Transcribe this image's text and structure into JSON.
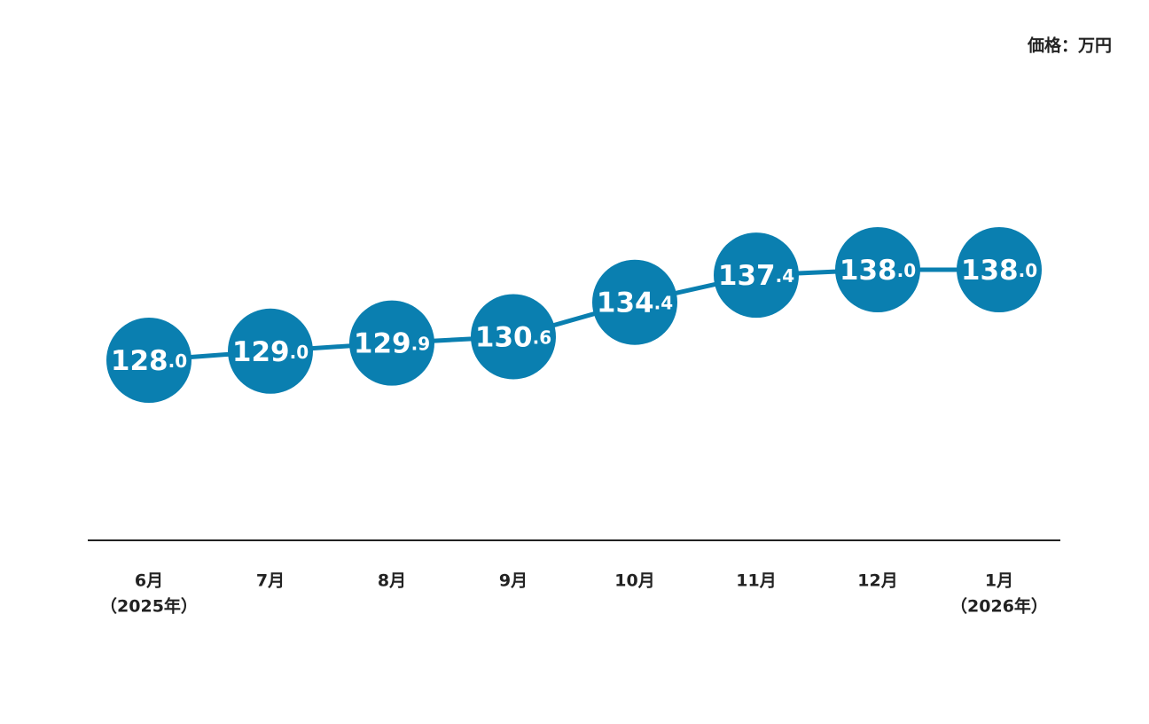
{
  "chart_data": {
    "type": "line",
    "unit_label": "価格：万円",
    "categories": [
      [
        "6月",
        "（2025年）"
      ],
      [
        "7月"
      ],
      [
        "8月"
      ],
      [
        "9月"
      ],
      [
        "10月"
      ],
      [
        "11月"
      ],
      [
        "12月"
      ],
      [
        "1月",
        "（2026年）"
      ]
    ],
    "values": [
      128.0,
      129.0,
      129.9,
      130.6,
      134.4,
      137.4,
      138.0,
      138.0
    ],
    "value_labels": [
      "128.0",
      "129.0",
      "129.9",
      "130.6",
      "134.4",
      "137.4",
      "138.0",
      "138.0"
    ],
    "color": "#0a7fb0"
  }
}
